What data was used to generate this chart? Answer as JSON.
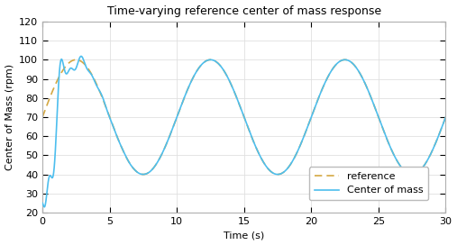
{
  "title": "Time-varying reference center of mass response",
  "xlabel": "Time (s)",
  "ylabel": "Center of Mass (rpm)",
  "xlim": [
    0,
    30
  ],
  "ylim": [
    20,
    120
  ],
  "xticks": [
    0,
    5,
    10,
    15,
    20,
    25,
    30
  ],
  "yticks": [
    20,
    30,
    40,
    50,
    60,
    70,
    80,
    90,
    100,
    110,
    120
  ],
  "ref_amplitude": 30,
  "ref_mean": 70,
  "ref_period": 10.0,
  "ref_phase_shift": 2.5,
  "com_color": "#4DBEEE",
  "ref_color": "#D4A843",
  "legend_labels": [
    "Center of mass",
    "reference"
  ],
  "background_color": "#ffffff",
  "grid_color": "#e0e0e0",
  "figsize": [
    5.07,
    2.72
  ],
  "dpi": 100,
  "transient_A1": 50,
  "transient_decay1": 1.1,
  "transient_omega1": 4.2,
  "transient_phi1": 1.57,
  "transient_A2": -18,
  "transient_decay2": 0.9,
  "transient_omega2": 8.0,
  "transient_phi2": 0.3,
  "transient_decay_shift": 1.8,
  "com_start": 25
}
